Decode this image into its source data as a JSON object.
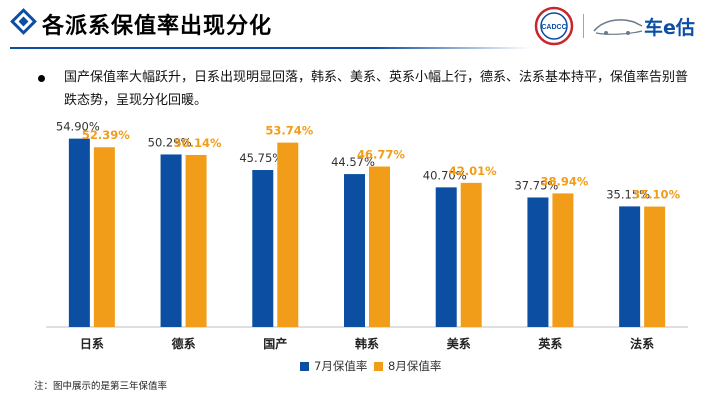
{
  "header": {
    "title": "各派系保值率出现分化",
    "brand_left": "CADCC",
    "brand_right": "车e估"
  },
  "summary": "国产保值率大幅跃升，日系出现明显回落，韩系、美系、英系小幅上行，德系、法系基本持平，保值率告别普跌态势，呈现分化回暖。",
  "footnote": "注：图中展示的是第三年保值率",
  "colors": {
    "accent_blue": "#0b4ea2",
    "series_july": "#0b4ea2",
    "series_august": "#f29d1a"
  },
  "chart_data": {
    "type": "bar",
    "categories": [
      "日系",
      "德系",
      "国产",
      "韩系",
      "美系",
      "英系",
      "法系"
    ],
    "series": [
      {
        "name": "7月保值率",
        "values": [
          54.9,
          50.29,
          45.75,
          44.57,
          40.7,
          37.75,
          35.15
        ],
        "labels": [
          "54.90%",
          "50.29%",
          "45.75%",
          "44.57%",
          "40.70%",
          "37.75%",
          "35.15%"
        ]
      },
      {
        "name": "8月保值率",
        "values": [
          52.39,
          50.14,
          53.74,
          46.77,
          42.01,
          38.94,
          35.1
        ],
        "labels": [
          "52.39%",
          "50.14%",
          "53.74%",
          "46.77%",
          "42.01%",
          "38.94%",
          "35.10%"
        ]
      }
    ],
    "ylim": [
      0,
      58
    ],
    "grid": false,
    "legend_position": "bottom-center"
  }
}
